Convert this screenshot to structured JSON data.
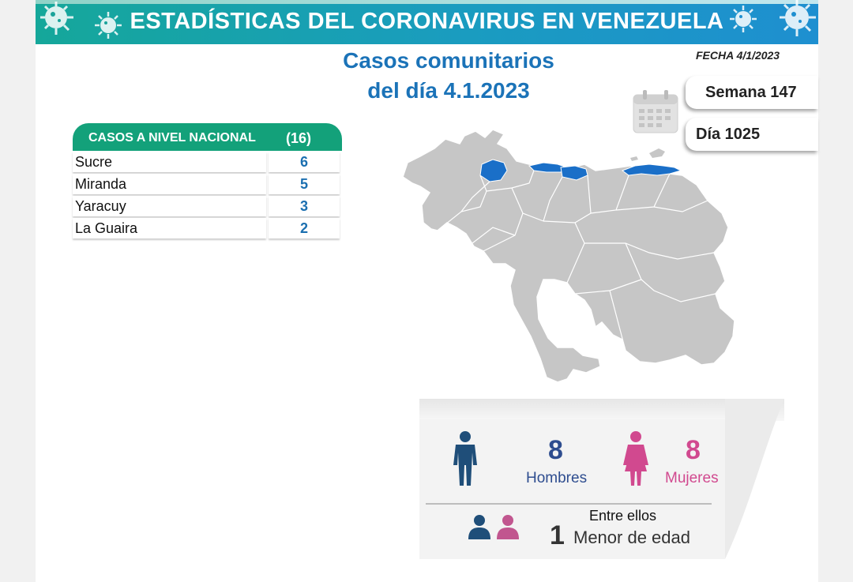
{
  "banner": {
    "title": "ESTADÍSTICAS DEL CORONAVIRUS EN VENEZUELA"
  },
  "header": {
    "title_line1": "Casos comunitarios",
    "title_line2": "del día 4.1.2023",
    "fecha": "FECHA 4/1/2023"
  },
  "counters": {
    "semana": "Semana 147",
    "dia": "Día 1025",
    "calendar_icon": "calendar-icon"
  },
  "table": {
    "heading": "CASOS A NIVEL NACIONAL",
    "total": "(16)",
    "rows": [
      {
        "state": "Sucre",
        "cases": "6"
      },
      {
        "state": "Miranda",
        "cases": "5"
      },
      {
        "state": "Yaracuy",
        "cases": "3"
      },
      {
        "state": "La Guaira",
        "cases": "2"
      }
    ]
  },
  "map": {
    "highlight_states": [
      "Yaracuy",
      "Miranda",
      "La Guaira",
      "Sucre"
    ],
    "base_color": "#c6c6c6",
    "highlight_color": "#1a6fc8"
  },
  "stats": {
    "men_count": "8",
    "men_label": "Hombres",
    "women_count": "8",
    "women_label": "Mujeres",
    "minors_intro": "Entre ellos",
    "minors_count": "1",
    "minors_label": "Menor de edad",
    "men_color": "#1f4e79",
    "women_color": "#d1498f"
  }
}
